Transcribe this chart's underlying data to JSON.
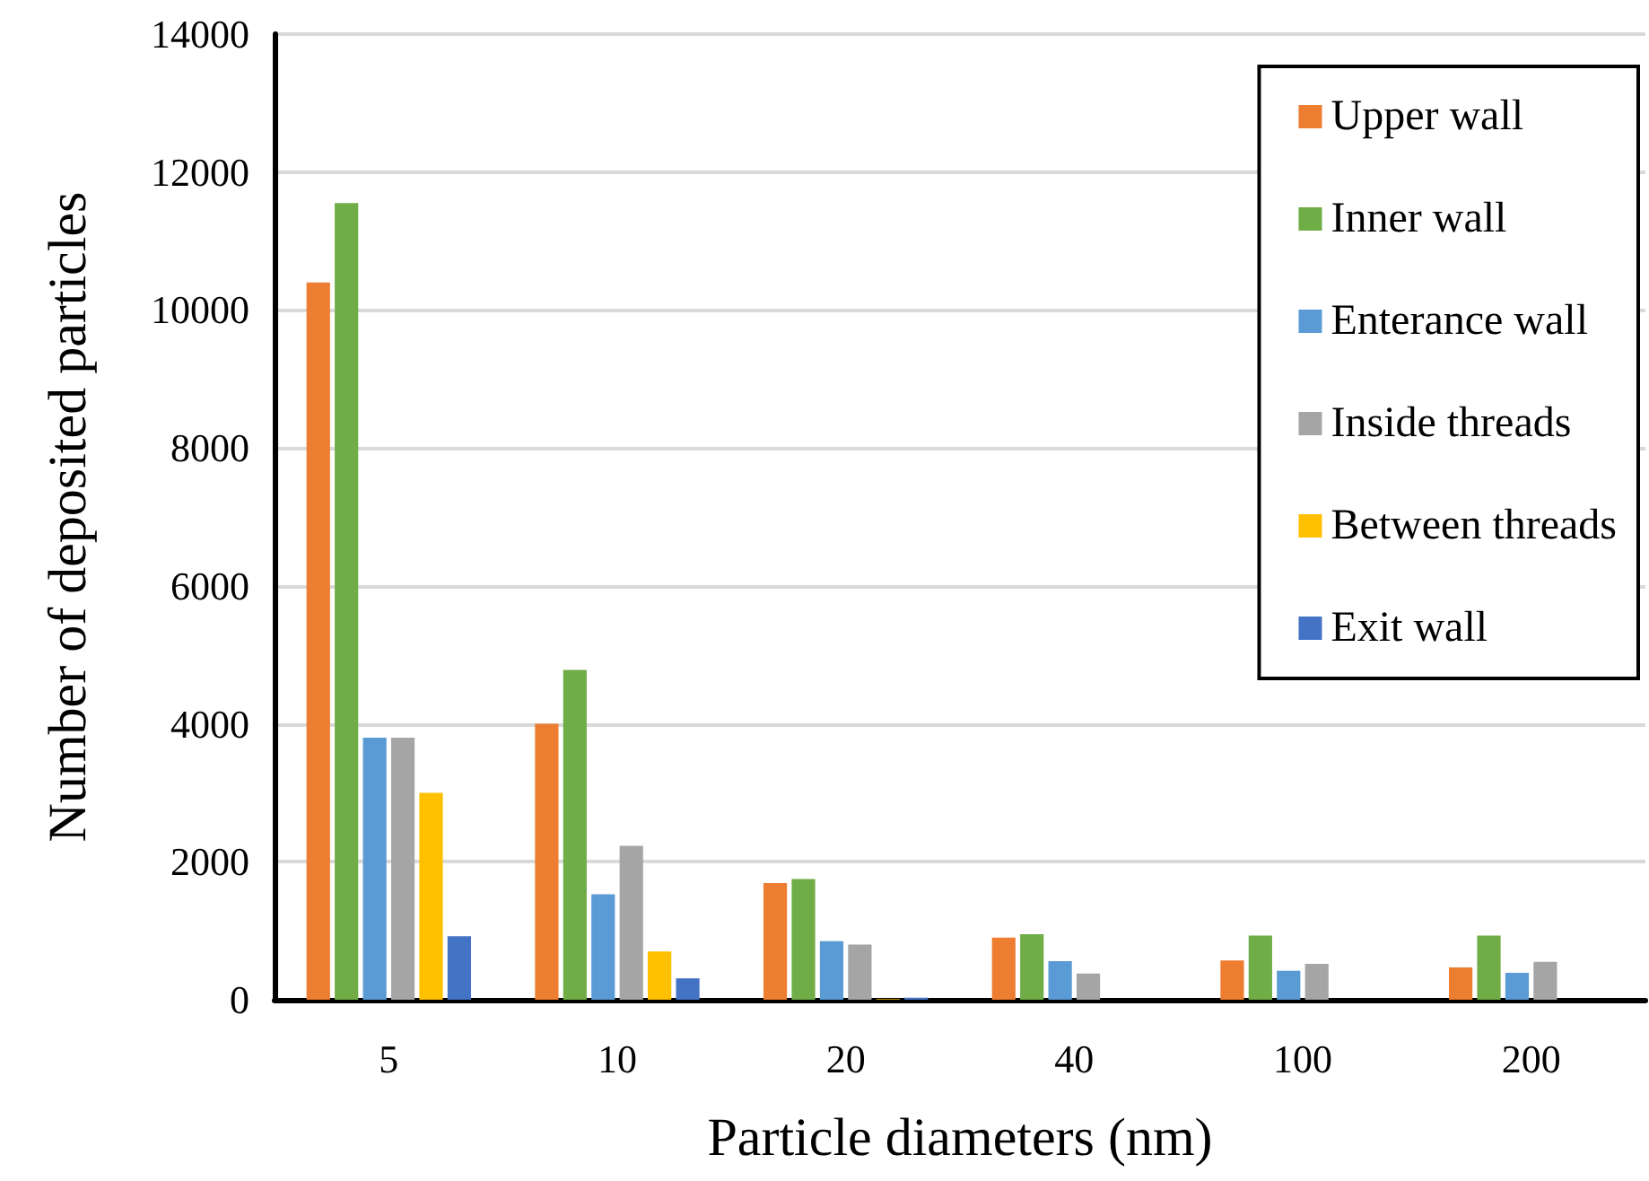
{
  "chart_data": {
    "type": "bar",
    "xlabel": "Particle diameters (nm)",
    "ylabel": "Number of deposited particles",
    "categories": [
      "5",
      "10",
      "20",
      "40",
      "100",
      "200"
    ],
    "series": [
      {
        "name": "Upper wall",
        "color": "#ed7d31",
        "values": [
          10400,
          4000,
          1690,
          900,
          570,
          470
        ]
      },
      {
        "name": "Inner wall",
        "color": "#70ad47",
        "values": [
          11550,
          4780,
          1750,
          950,
          930,
          930
        ]
      },
      {
        "name": "Enterance wall",
        "color": "#5b9bd5",
        "values": [
          3800,
          1530,
          850,
          560,
          420,
          390
        ]
      },
      {
        "name": "Inside threads",
        "color": "#a5a5a5",
        "values": [
          3800,
          2230,
          800,
          380,
          520,
          550
        ]
      },
      {
        "name": "Between threads",
        "color": "#ffc000",
        "values": [
          3000,
          700,
          10,
          null,
          null,
          null
        ]
      },
      {
        "name": "Exit wall",
        "color": "#4472c4",
        "values": [
          920,
          310,
          30,
          null,
          null,
          null
        ]
      }
    ],
    "ylim": [
      0,
      14000
    ],
    "yticks": [
      0,
      2000,
      4000,
      6000,
      8000,
      10000,
      12000,
      14000
    ],
    "grid": "y",
    "legend": "top right"
  }
}
